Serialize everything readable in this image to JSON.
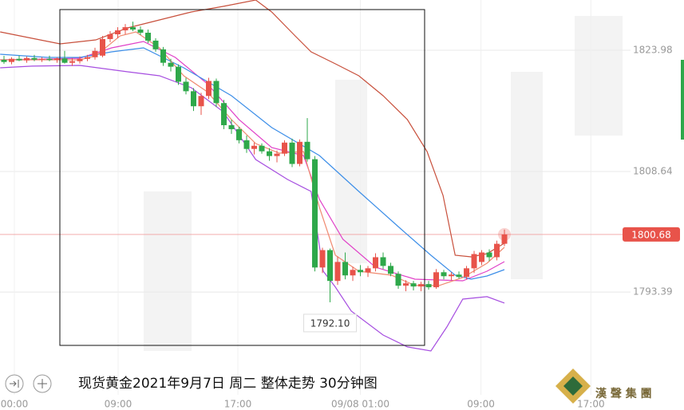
{
  "chart_data": {
    "type": "candlestick",
    "title": "现货黄金2021年9月7日 周二 整体走势  30分钟图",
    "brand": "漢 聲 集 團",
    "up_color": "#e8534a",
    "down_color": "#2ea84a",
    "xlim": [
      -0.526,
      89.68
    ],
    "ylim": [
      1780.39,
      1830.34
    ],
    "yticks": [
      1823.98,
      1808.64,
      1793.39
    ],
    "xticks": [
      {
        "value": 1.37,
        "label": "00:00"
      },
      {
        "value": 15.05,
        "label": "09:00"
      },
      {
        "value": 30.84,
        "label": "17:00"
      },
      {
        "value": 47.0,
        "label": "09/08 01:00"
      },
      {
        "value": 62.9,
        "label": "09:00"
      },
      {
        "value": 77.4,
        "label": "17:00"
      }
    ],
    "grid": true,
    "last_price": 1800.68,
    "low_marker": {
      "value": 1792.1,
      "label": "1792.10"
    },
    "open": [
      1822.77,
      1822.5,
      1822.9,
      1822.7,
      1823.0,
      1822.8,
      1822.9,
      1822.75,
      1822.95,
      1822.4,
      1822.6,
      1822.9,
      1823.1,
      1823.3,
      1825.4,
      1826.0,
      1826.5,
      1826.9,
      1826.6,
      1826.2,
      1825.2,
      1824.1,
      1822.4,
      1821.9,
      1820.0,
      1818.8,
      1816.9,
      1818.2,
      1820.1,
      1817.3,
      1814.5,
      1814.0,
      1812.6,
      1811.5,
      1811.9,
      1811.2,
      1810.6,
      1810.9,
      1812.3,
      1809.6,
      1812.4,
      1810.2,
      1796.5,
      1798.7,
      1794.8,
      1797.2,
      1795.5,
      1796.2,
      1795.9,
      1796.4,
      1797.8,
      1796.7,
      1795.7,
      1794.2,
      1794.5,
      1794.1,
      1794.4,
      1794.0,
      1795.9,
      1795.4,
      1795.6,
      1795.3,
      1796.4,
      1797.2,
      1798.4,
      1797.8,
      1799.5
    ],
    "high": [
      1823.28,
      1823.1,
      1823.3,
      1823.2,
      1823.4,
      1823.1,
      1823.3,
      1823.1,
      1823.9,
      1823.0,
      1823.2,
      1823.4,
      1824.3,
      1825.8,
      1826.4,
      1826.9,
      1827.3,
      1827.6,
      1827.0,
      1826.6,
      1825.5,
      1824.4,
      1822.9,
      1822.2,
      1820.5,
      1819.2,
      1818.6,
      1820.5,
      1820.4,
      1817.7,
      1815.2,
      1814.3,
      1813.2,
      1812.3,
      1812.2,
      1811.6,
      1811.3,
      1812.6,
      1812.8,
      1812.7,
      1815.4,
      1810.6,
      1799.0,
      1798.9,
      1797.9,
      1798.4,
      1796.6,
      1796.8,
      1796.7,
      1798.3,
      1798.4,
      1797.1,
      1796.0,
      1794.9,
      1794.8,
      1794.7,
      1794.8,
      1796.3,
      1796.2,
      1795.9,
      1796.0,
      1796.7,
      1798.6,
      1798.7,
      1798.8,
      1799.9,
      1801.3
    ],
    "low": [
      1822.27,
      1822.2,
      1822.6,
      1822.4,
      1822.6,
      1822.5,
      1822.6,
      1822.4,
      1822.3,
      1822.0,
      1822.3,
      1822.6,
      1822.8,
      1823.1,
      1825.0,
      1825.5,
      1826.0,
      1826.4,
      1825.9,
      1824.9,
      1823.8,
      1822.0,
      1821.3,
      1819.6,
      1818.4,
      1816.3,
      1815.8,
      1817.8,
      1816.8,
      1814.0,
      1813.4,
      1812.2,
      1811.0,
      1810.8,
      1810.9,
      1810.0,
      1809.8,
      1810.6,
      1809.2,
      1809.3,
      1809.9,
      1796.0,
      1795.8,
      1792.1,
      1794.3,
      1795.0,
      1794.8,
      1795.4,
      1795.3,
      1796.0,
      1796.3,
      1795.4,
      1793.8,
      1793.5,
      1793.6,
      1793.5,
      1793.7,
      1793.8,
      1795.0,
      1794.9,
      1795.1,
      1795.0,
      1795.8,
      1796.8,
      1797.3,
      1797.4,
      1799.2
    ],
    "close": [
      1822.5,
      1822.9,
      1822.7,
      1823.0,
      1822.8,
      1822.9,
      1822.75,
      1822.95,
      1822.4,
      1822.6,
      1822.9,
      1823.1,
      1823.9,
      1825.4,
      1826.0,
      1826.5,
      1826.9,
      1826.6,
      1826.2,
      1825.2,
      1824.1,
      1822.4,
      1821.9,
      1820.0,
      1818.8,
      1816.9,
      1818.2,
      1820.1,
      1817.3,
      1814.5,
      1814.0,
      1812.6,
      1811.5,
      1811.9,
      1811.2,
      1810.6,
      1810.9,
      1812.3,
      1809.6,
      1812.4,
      1810.2,
      1796.5,
      1798.7,
      1794.8,
      1797.2,
      1795.5,
      1796.2,
      1795.9,
      1796.4,
      1797.8,
      1796.7,
      1795.7,
      1794.2,
      1794.5,
      1794.1,
      1794.4,
      1794.0,
      1795.9,
      1795.4,
      1795.6,
      1795.3,
      1796.4,
      1798.2,
      1798.4,
      1797.8,
      1799.5,
      1800.68
    ],
    "series": [
      {
        "color": "#c8503c",
        "x": [
          -0.5,
          3.7,
          7.4,
          12.1,
          16.3,
          20.5,
          24.7,
          28.9,
          33.2,
          35.3,
          38.4,
          40.5,
          43.7,
          46.8,
          50,
          53.2,
          55.8,
          57.9,
          59.5,
          61.6,
          63.7,
          66
        ],
        "values": [
          1826.3,
          1825.5,
          1824.79,
          1825.29,
          1826.81,
          1827.82,
          1828.83,
          1829.53,
          1830.34,
          1828.83,
          1825.8,
          1823.78,
          1822.27,
          1820.75,
          1818.23,
          1815.21,
          1811.17,
          1805.62,
          1798.05,
          1797.85,
          1798.25,
          1799.57
        ]
      },
      {
        "color": "#a64ee0",
        "x": [
          -0.5,
          3.7,
          10,
          16.3,
          20.5,
          24.7,
          28.9,
          33.2,
          37.4,
          40.5,
          42.1,
          43.7,
          45.8,
          50,
          53.2,
          56.3,
          58.4,
          60.5,
          63.7,
          66
        ],
        "values": [
          1821.76,
          1821.97,
          1822.07,
          1821.26,
          1820.75,
          1819.24,
          1816.21,
          1810.16,
          1807.64,
          1806.12,
          1796.03,
          1794.02,
          1790.99,
          1787.96,
          1786.45,
          1785.94,
          1788.97,
          1792.5,
          1792.81,
          1792.0
        ]
      },
      {
        "color": "#e040c8",
        "x": [
          -0.5,
          5.8,
          10,
          14.2,
          18.4,
          22.6,
          26.8,
          31,
          35.3,
          39.5,
          41.6,
          44.7,
          49,
          54.2,
          60.5,
          63.7,
          66
        ],
        "values": [
          1822.77,
          1822.87,
          1822.97,
          1824.29,
          1825.09,
          1823.07,
          1819.75,
          1815.21,
          1811.67,
          1810.66,
          1805.12,
          1800.07,
          1796.54,
          1795.02,
          1794.82,
          1796.03,
          1797.24
        ]
      },
      {
        "color": "#3c8ee8",
        "x": [
          -0.5,
          5.8,
          10,
          14.2,
          18.4,
          23.7,
          30,
          35.3,
          41.6,
          46.8,
          52.1,
          56.3,
          59.5,
          61.6,
          63.7,
          66
        ],
        "values": [
          1823.48,
          1823.07,
          1823.07,
          1823.78,
          1824.29,
          1821.76,
          1818.23,
          1814.2,
          1810.66,
          1806.12,
          1801.58,
          1798.05,
          1795.53,
          1795.02,
          1795.43,
          1796.23
        ]
      },
      {
        "color": "#f08a70",
        "x": [
          -0.5,
          10,
          12.1,
          15.3,
          17.4,
          20.5,
          23.7,
          26.8,
          30,
          33.2,
          36.3,
          39.5,
          41.6,
          43.7,
          46.8,
          51.1,
          54.2,
          57.4,
          60.5,
          63.7,
          66
        ],
        "values": [
          1822.77,
          1822.77,
          1823.28,
          1825.8,
          1826.3,
          1824.29,
          1820.75,
          1818.74,
          1815.21,
          1812.18,
          1810.97,
          1811.17,
          1804.11,
          1798.05,
          1796.03,
          1795.53,
          1794.22,
          1794.22,
          1795.23,
          1797.04,
          1799.06
        ]
      }
    ]
  }
}
